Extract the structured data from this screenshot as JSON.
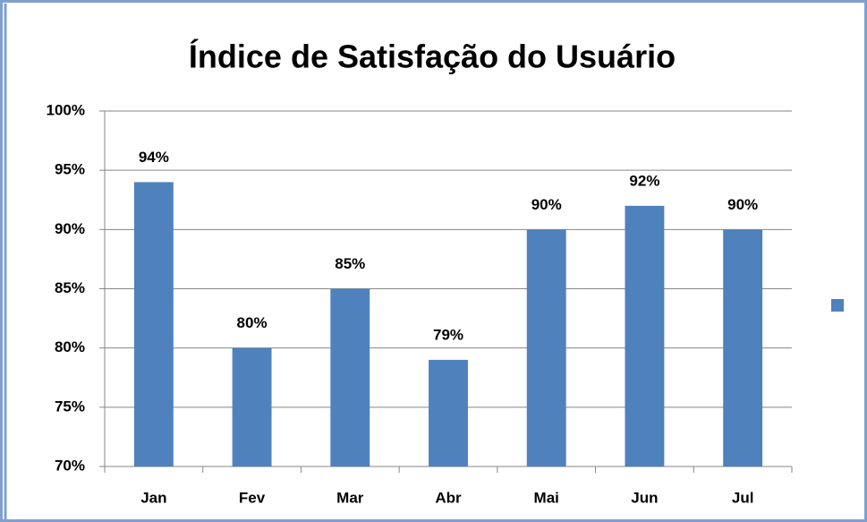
{
  "chart_data": {
    "type": "bar",
    "title": "Índice de Satisfação do Usuário",
    "categories": [
      "Jan",
      "Fev",
      "Mar",
      "Abr",
      "Mai",
      "Jun",
      "Jul"
    ],
    "values": [
      94,
      80,
      85,
      79,
      90,
      92,
      90
    ],
    "value_labels": [
      "94%",
      "80%",
      "85%",
      "79%",
      "90%",
      "92%",
      "90%"
    ],
    "color": "#4f81bd",
    "ylim": [
      70,
      100
    ],
    "yticks": [
      {
        "value": 70,
        "label": "70%"
      },
      {
        "value": 75,
        "label": "75%"
      },
      {
        "value": 80,
        "label": "80%"
      },
      {
        "value": 85,
        "label": "85%"
      },
      {
        "value": 90,
        "label": "90%"
      },
      {
        "value": 95,
        "label": "95%"
      },
      {
        "value": 100,
        "label": "100%"
      }
    ],
    "grid": true
  }
}
